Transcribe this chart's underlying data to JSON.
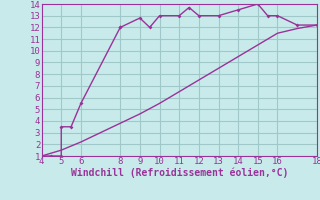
{
  "xlabel": "Windchill (Refroidissement éolien,°C)",
  "background_color": "#c8eaea",
  "grid_color": "#a0c8c8",
  "line_color": "#993399",
  "curve1_x": [
    4,
    4.5,
    5,
    5,
    5.5,
    6,
    8,
    8,
    9,
    9.5,
    10,
    11,
    11.5,
    12,
    13,
    14,
    15,
    15.5,
    16,
    17,
    18
  ],
  "curve1_y": [
    1,
    1,
    1,
    3.5,
    3.5,
    5.5,
    12,
    12,
    12.8,
    12,
    13,
    13,
    13.7,
    13,
    13,
    13.5,
    14,
    13,
    13,
    12.2,
    12.2
  ],
  "curve2_x": [
    4,
    5,
    6,
    7,
    8,
    9,
    10,
    11,
    12,
    13,
    14,
    15,
    16,
    17,
    18
  ],
  "curve2_y": [
    1,
    1.5,
    2.2,
    3.0,
    3.8,
    4.6,
    5.5,
    6.5,
    7.5,
    8.5,
    9.5,
    10.5,
    11.5,
    11.9,
    12.2
  ],
  "xlim": [
    4,
    18
  ],
  "ylim": [
    1,
    14
  ],
  "xticks": [
    4,
    5,
    6,
    8,
    9,
    10,
    11,
    12,
    13,
    14,
    15,
    16,
    18
  ],
  "yticks": [
    1,
    2,
    3,
    4,
    5,
    6,
    7,
    8,
    9,
    10,
    11,
    12,
    13,
    14
  ],
  "font_family": "monospace",
  "xlabel_fontsize": 7.0,
  "tick_fontsize": 6.5,
  "tick_color": "#993399",
  "label_color": "#993399"
}
